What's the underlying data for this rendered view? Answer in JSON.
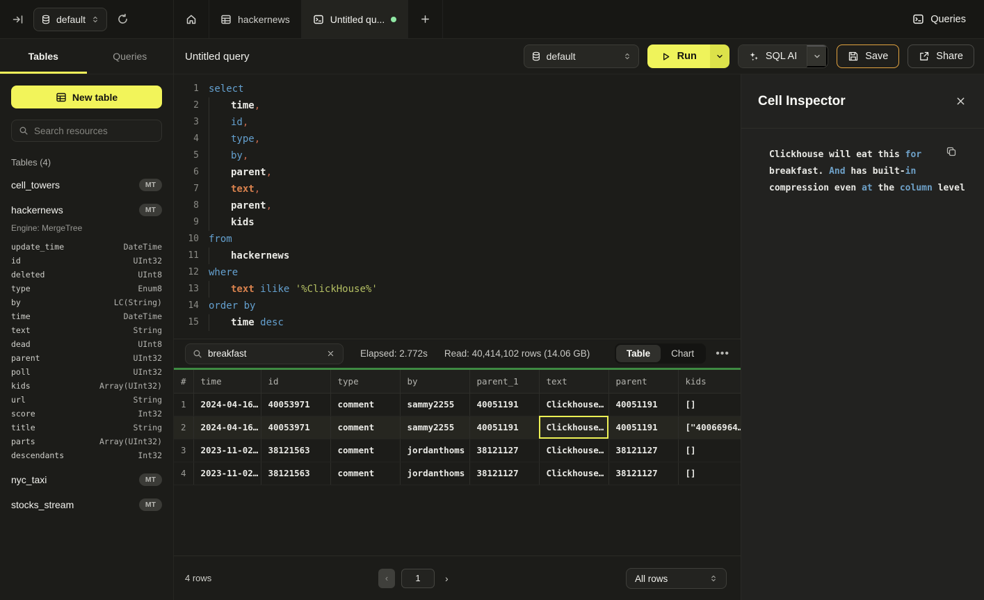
{
  "colors": {
    "accent_yellow": "#f2f45a",
    "save_border_amber": "#e3a440",
    "progress_green": "#3e8a42",
    "keyword_blue": "#64a0cf",
    "identifier_orange": "#d8814d",
    "string_green": "#b4bf63",
    "unsaved_dot_green": "#90e8a4"
  },
  "topbar": {
    "database": {
      "label": "default"
    },
    "tabs": [
      {
        "label": "hackernews"
      },
      {
        "label": "Untitled qu...",
        "unsaved": true
      }
    ],
    "queries_label": "Queries"
  },
  "sidebar": {
    "tabs": [
      "Tables",
      "Queries"
    ],
    "active_tab": "Tables",
    "new_table_label": "New table",
    "search_placeholder": "Search resources",
    "section_label": "Tables (4)",
    "tables": [
      {
        "name": "cell_towers",
        "badge": "MT"
      },
      {
        "name": "hackernews",
        "badge": "MT",
        "engine": "Engine: MergeTree",
        "columns": [
          [
            "update_time",
            "DateTime"
          ],
          [
            "id",
            "UInt32"
          ],
          [
            "deleted",
            "UInt8"
          ],
          [
            "type",
            "Enum8"
          ],
          [
            "by",
            "LC(String)"
          ],
          [
            "time",
            "DateTime"
          ],
          [
            "text",
            "String"
          ],
          [
            "dead",
            "UInt8"
          ],
          [
            "parent",
            "UInt32"
          ],
          [
            "poll",
            "UInt32"
          ],
          [
            "kids",
            "Array(UInt32)"
          ],
          [
            "url",
            "String"
          ],
          [
            "score",
            "Int32"
          ],
          [
            "title",
            "String"
          ],
          [
            "parts",
            "Array(UInt32)"
          ],
          [
            "descendants",
            "Int32"
          ]
        ]
      },
      {
        "name": "nyc_taxi",
        "badge": "MT"
      },
      {
        "name": "stocks_stream",
        "badge": "MT"
      }
    ]
  },
  "query_toolbar": {
    "title": "Untitled query",
    "database": "default",
    "run_label": "Run",
    "sql_ai_label": "SQL AI",
    "save_label": "Save",
    "share_label": "Share"
  },
  "editor": {
    "lines": [
      {
        "n": 1,
        "indent": false,
        "tokens": [
          [
            "select",
            "kw"
          ]
        ]
      },
      {
        "n": 2,
        "indent": true,
        "tokens": [
          [
            "time",
            "id"
          ],
          [
            ",",
            "cm"
          ]
        ]
      },
      {
        "n": 3,
        "indent": true,
        "tokens": [
          [
            "id",
            "kw"
          ],
          [
            ",",
            "cm"
          ]
        ]
      },
      {
        "n": 4,
        "indent": true,
        "tokens": [
          [
            "type",
            "kw"
          ],
          [
            ",",
            "cm"
          ]
        ]
      },
      {
        "n": 5,
        "indent": true,
        "tokens": [
          [
            "by",
            "kw"
          ],
          [
            ",",
            "cm"
          ]
        ]
      },
      {
        "n": 6,
        "indent": true,
        "tokens": [
          [
            "parent",
            "id"
          ],
          [
            ",",
            "cm"
          ]
        ]
      },
      {
        "n": 7,
        "indent": true,
        "tokens": [
          [
            "text",
            "or"
          ],
          [
            ",",
            "cm"
          ]
        ]
      },
      {
        "n": 8,
        "indent": true,
        "tokens": [
          [
            "parent",
            "id"
          ],
          [
            ",",
            "cm"
          ]
        ]
      },
      {
        "n": 9,
        "indent": true,
        "tokens": [
          [
            "kids",
            "id"
          ]
        ]
      },
      {
        "n": 10,
        "indent": false,
        "tokens": [
          [
            "from",
            "kw"
          ]
        ]
      },
      {
        "n": 11,
        "indent": true,
        "tokens": [
          [
            "hackernews",
            "id"
          ]
        ]
      },
      {
        "n": 12,
        "indent": false,
        "tokens": [
          [
            "where",
            "kw"
          ]
        ]
      },
      {
        "n": 13,
        "indent": true,
        "tokens": [
          [
            "text",
            "or"
          ],
          [
            " ",
            "pl"
          ],
          [
            "ilike",
            "kw"
          ],
          [
            " ",
            "pl"
          ],
          [
            "'%ClickHouse%'",
            "st"
          ]
        ]
      },
      {
        "n": 14,
        "indent": false,
        "tokens": [
          [
            "order by",
            "kw"
          ]
        ]
      },
      {
        "n": 15,
        "indent": true,
        "tokens": [
          [
            "time",
            "id"
          ],
          [
            " ",
            "pl"
          ],
          [
            "desc",
            "kw"
          ]
        ]
      }
    ]
  },
  "results": {
    "search_value": "breakfast",
    "elapsed": "Elapsed: 2.772s",
    "read": "Read: 40,414,102 rows (14.06 GB)",
    "views": [
      "Table",
      "Chart"
    ],
    "active_view": "Table",
    "columns": [
      "#",
      "time",
      "id",
      "type",
      "by",
      "parent_1",
      "text",
      "parent",
      "kids"
    ],
    "rows": [
      {
        "cells": [
          "2024-04-16…",
          "40053971",
          "comment",
          "sammy2255",
          "40051191",
          "Clickhouse…",
          "40051191",
          "[]"
        ],
        "selected": false
      },
      {
        "cells": [
          "2024-04-16…",
          "40053971",
          "comment",
          "sammy2255",
          "40051191",
          "Clickhouse…",
          "40051191",
          "[\"40066964…"
        ],
        "selected": true,
        "selected_cell": 5
      },
      {
        "cells": [
          "2023-11-02…",
          "38121563",
          "comment",
          "jordanthoms",
          "38121127",
          "Clickhouse…",
          "38121127",
          "[]"
        ],
        "selected": false
      },
      {
        "cells": [
          "2023-11-02…",
          "38121563",
          "comment",
          "jordanthoms",
          "38121127",
          "Clickhouse…",
          "38121127",
          "[]"
        ],
        "selected": false
      }
    ],
    "footer": {
      "row_count": "4 rows",
      "page": "1",
      "page_size": "All rows"
    }
  },
  "inspector": {
    "title": "Cell Inspector",
    "segments": [
      {
        "text": "Clickhouse will eat this ",
        "highlight": false
      },
      {
        "text": "for",
        "highlight": true
      },
      {
        "text": " breakfast. ",
        "highlight": false
      },
      {
        "text": "And",
        "highlight": true
      },
      {
        "text": " has built-",
        "highlight": false
      },
      {
        "text": "in",
        "highlight": true
      },
      {
        "text": " compression even ",
        "highlight": false
      },
      {
        "text": "at",
        "highlight": true
      },
      {
        "text": " the ",
        "highlight": false
      },
      {
        "text": "column",
        "highlight": true
      },
      {
        "text": " level",
        "highlight": false
      }
    ]
  }
}
